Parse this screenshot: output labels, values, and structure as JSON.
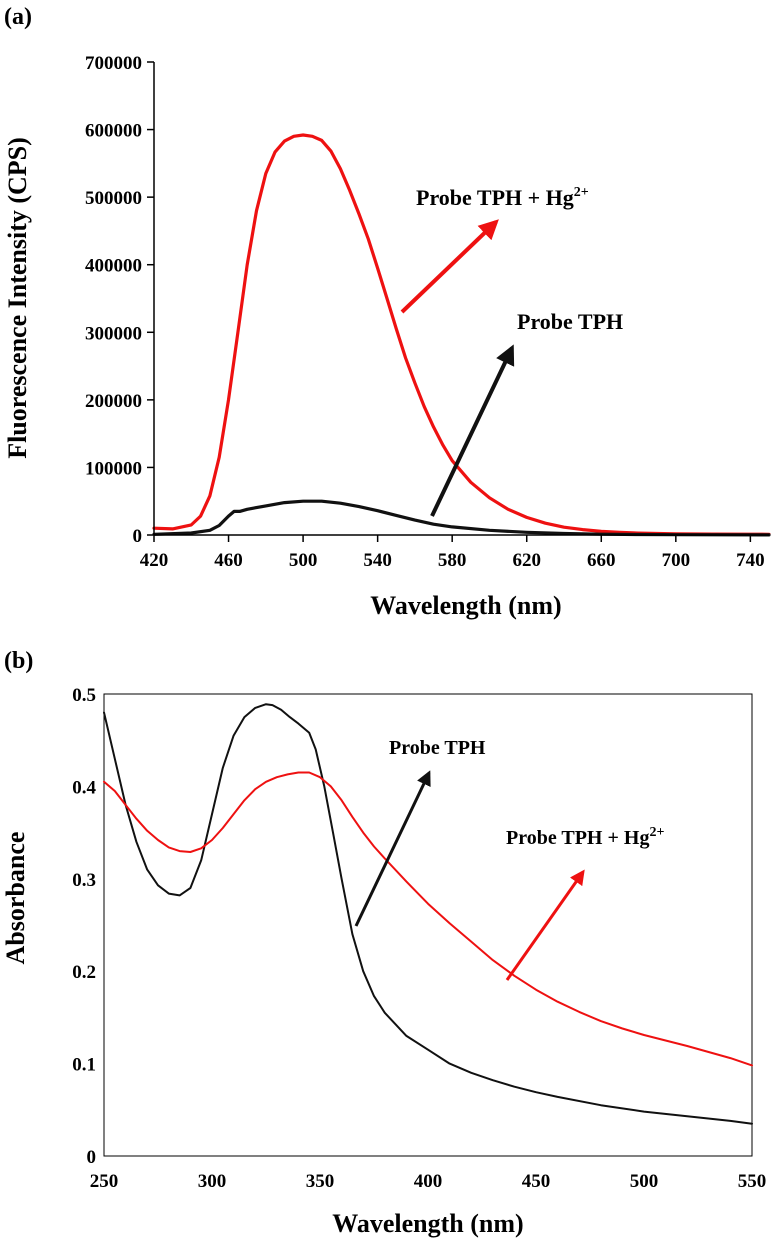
{
  "chart_data": [
    {
      "id": "a",
      "type": "line",
      "panel_label": "(a)",
      "xlabel": "Wavelength  (nm)",
      "ylabel": "Fluorescence Intensity (CPS)",
      "xlim": [
        420,
        750
      ],
      "ylim": [
        0,
        700000
      ],
      "xticks": [
        420,
        460,
        500,
        540,
        580,
        620,
        660,
        700,
        740
      ],
      "xtick_labels": [
        "420",
        "460",
        "500",
        "540",
        "580",
        "620",
        "660",
        "700",
        "740"
      ],
      "yticks": [
        0,
        100000,
        200000,
        300000,
        400000,
        500000,
        600000,
        700000
      ],
      "ytick_labels": [
        "0",
        "100000",
        "200000",
        "300000",
        "400000",
        "500000",
        "600000",
        "700000"
      ],
      "grid": false,
      "series": [
        {
          "name": "Probe TPH + Hg2+",
          "color": "#ee1111",
          "x": [
            420,
            430,
            440,
            445,
            450,
            455,
            460,
            465,
            470,
            475,
            480,
            485,
            490,
            495,
            500,
            505,
            510,
            515,
            520,
            525,
            530,
            535,
            540,
            545,
            550,
            555,
            560,
            565,
            570,
            575,
            580,
            590,
            600,
            610,
            620,
            630,
            640,
            650,
            660,
            670,
            680,
            690,
            700,
            720,
            740,
            750
          ],
          "y": [
            10000,
            9000,
            15000,
            28000,
            58000,
            115000,
            200000,
            300000,
            400000,
            480000,
            535000,
            567000,
            583000,
            590000,
            592000,
            590000,
            584000,
            568000,
            542000,
            510000,
            475000,
            438000,
            395000,
            350000,
            305000,
            262000,
            225000,
            190000,
            160000,
            133000,
            110000,
            78000,
            55000,
            38000,
            26000,
            17500,
            11500,
            8000,
            5500,
            3800,
            2800,
            2200,
            1800,
            1400,
            1200,
            1100
          ]
        },
        {
          "name": "Probe TPH",
          "color": "#111111",
          "x": [
            420,
            440,
            450,
            455,
            460,
            463,
            466,
            470,
            480,
            490,
            500,
            510,
            520,
            530,
            540,
            550,
            560,
            570,
            580,
            600,
            620,
            640,
            660,
            680,
            700,
            750
          ],
          "y": [
            1000,
            3000,
            7000,
            14000,
            28000,
            35000,
            35000,
            38000,
            43000,
            48000,
            50000,
            50000,
            47000,
            42000,
            36000,
            29000,
            22000,
            16000,
            12000,
            7000,
            4000,
            2200,
            1200,
            700,
            400,
            200
          ]
        }
      ],
      "annotations": [
        {
          "text": "Probe TPH + Hg",
          "superscript": "2+",
          "target_series": "Probe TPH + Hg2+"
        },
        {
          "text": "Probe TPH",
          "target_series": "Probe TPH"
        }
      ]
    },
    {
      "id": "b",
      "type": "line",
      "panel_label": "(b)",
      "xlabel": "Wavelength  (nm)",
      "ylabel": "Absorbance",
      "xlim": [
        250,
        550
      ],
      "ylim": [
        0,
        0.5
      ],
      "xticks": [
        250,
        300,
        350,
        400,
        450,
        500,
        550
      ],
      "xtick_labels": [
        "250",
        "300",
        "350",
        "400",
        "450",
        "500",
        "550"
      ],
      "yticks": [
        0,
        0.1,
        0.2,
        0.3,
        0.4,
        0.5
      ],
      "ytick_labels": [
        "0",
        "0.1",
        "0.2",
        "0.3",
        "0.4",
        "0.5"
      ],
      "grid": false,
      "series": [
        {
          "name": "Probe TPH",
          "color": "#111111",
          "x": [
            250,
            255,
            260,
            265,
            270,
            275,
            280,
            285,
            290,
            295,
            300,
            305,
            310,
            315,
            320,
            325,
            328,
            332,
            336,
            340,
            345,
            348,
            352,
            356,
            360,
            365,
            370,
            375,
            380,
            390,
            400,
            410,
            420,
            430,
            440,
            450,
            460,
            480,
            500,
            520,
            540,
            550
          ],
          "y": [
            0.48,
            0.43,
            0.38,
            0.34,
            0.31,
            0.293,
            0.284,
            0.282,
            0.29,
            0.32,
            0.37,
            0.42,
            0.455,
            0.475,
            0.485,
            0.489,
            0.488,
            0.483,
            0.475,
            0.468,
            0.458,
            0.44,
            0.4,
            0.35,
            0.3,
            0.24,
            0.2,
            0.173,
            0.155,
            0.13,
            0.115,
            0.1,
            0.09,
            0.082,
            0.075,
            0.069,
            0.064,
            0.055,
            0.048,
            0.043,
            0.038,
            0.035
          ]
        },
        {
          "name": "Probe TPH + Hg2+",
          "color": "#ee1111",
          "x": [
            250,
            255,
            260,
            265,
            270,
            275,
            280,
            285,
            290,
            295,
            300,
            305,
            310,
            315,
            320,
            325,
            330,
            335,
            340,
            345,
            350,
            355,
            360,
            365,
            370,
            375,
            380,
            390,
            400,
            410,
            420,
            430,
            440,
            450,
            460,
            470,
            480,
            490,
            500,
            520,
            540,
            550
          ],
          "y": [
            0.405,
            0.395,
            0.38,
            0.365,
            0.352,
            0.342,
            0.334,
            0.33,
            0.329,
            0.333,
            0.342,
            0.355,
            0.37,
            0.385,
            0.397,
            0.405,
            0.41,
            0.413,
            0.415,
            0.415,
            0.41,
            0.4,
            0.385,
            0.367,
            0.35,
            0.335,
            0.322,
            0.297,
            0.273,
            0.252,
            0.232,
            0.212,
            0.195,
            0.18,
            0.167,
            0.156,
            0.146,
            0.138,
            0.131,
            0.119,
            0.106,
            0.098
          ]
        }
      ],
      "annotations": [
        {
          "text": "Probe TPH",
          "target_series": "Probe TPH"
        },
        {
          "text": "Probe TPH + Hg",
          "superscript": "2+",
          "target_series": "Probe TPH + Hg2+"
        }
      ]
    }
  ]
}
